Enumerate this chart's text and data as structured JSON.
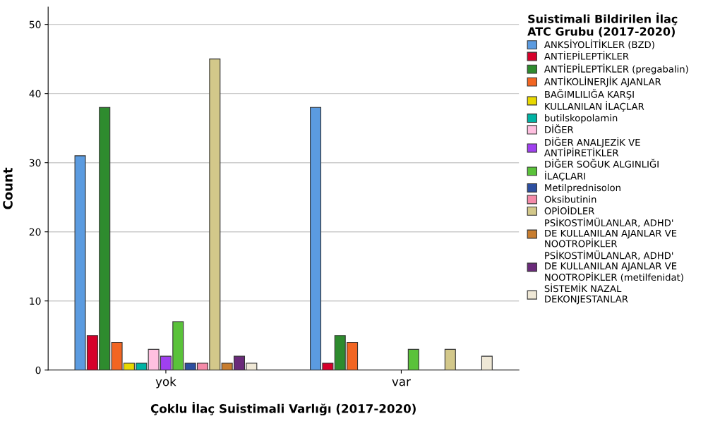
{
  "chart_data": {
    "type": "bar",
    "xlabel": "Çoklu İlaç Suistimali Varlığı (2017-2020)",
    "ylabel": "Count",
    "legend_title": "Suistimali Bildirilen İlaç\nATC Grubu (2017-2020)",
    "categories": [
      "yok",
      "var"
    ],
    "series": [
      {
        "name": "ANKSİYOLİTİKLER (BZD)",
        "color": "#5b9be0",
        "values": [
          31,
          38
        ]
      },
      {
        "name": "ANTİEPİLEPTİKLER",
        "color": "#d6002b",
        "values": [
          5,
          1
        ]
      },
      {
        "name": "ANTİEPİLEPTİKLER (pregabalin)",
        "color": "#2e8b2e",
        "values": [
          38,
          5
        ]
      },
      {
        "name": "ANTİKOLİNERJİK AJANLAR",
        "color": "#f26522",
        "values": [
          4,
          4
        ]
      },
      {
        "name": "BAĞIMLILIĞA KARŞI\nKULLANILAN İLAÇLAR",
        "color": "#e8d800",
        "values": [
          1,
          null
        ]
      },
      {
        "name": "butilskopolamin",
        "color": "#00b3a4",
        "values": [
          1,
          null
        ]
      },
      {
        "name": "DİĞER",
        "color": "#ffc0e0",
        "values": [
          3,
          null
        ]
      },
      {
        "name": "DİĞER ANALJEZİK VE\nANTİPİRETİKLER",
        "color": "#a040f0",
        "values": [
          2,
          null
        ]
      },
      {
        "name": "DİĞER SOĞUK ALGINLIĞI\nİLAÇLARI",
        "color": "#5ac23a",
        "values": [
          7,
          3
        ]
      },
      {
        "name": "Metilprednisolon",
        "color": "#2d4fa0",
        "values": [
          1,
          null
        ]
      },
      {
        "name": "Oksibutinin",
        "color": "#f48aa8",
        "values": [
          1,
          null
        ]
      },
      {
        "name": "OPİOİDLER",
        "color": "#d3c88a",
        "values": [
          45,
          3
        ]
      },
      {
        "name": "PSİKOSTİMÜLANLAR, ADHD'\nDE KULLANILAN AJANLAR VE\nNOOTROPİKLER",
        "color": "#c87d2f",
        "values": [
          1,
          null
        ]
      },
      {
        "name": "PSİKOSTİMÜLANLAR, ADHD'\nDE KULLANILAN AJANLAR VE\nNOOTROPİKLER (metilfenidat)",
        "color": "#6a2a7a",
        "values": [
          2,
          null
        ]
      },
      {
        "name": "SİSTEMİK NAZAL\nDEKONJESTANLAR",
        "color": "#efe8d6",
        "values": [
          1,
          2
        ]
      }
    ],
    "ylim": [
      0,
      52.5
    ],
    "yticks": [
      0,
      10,
      20,
      30,
      40,
      50
    ],
    "grid": "y",
    "legend": "right"
  }
}
